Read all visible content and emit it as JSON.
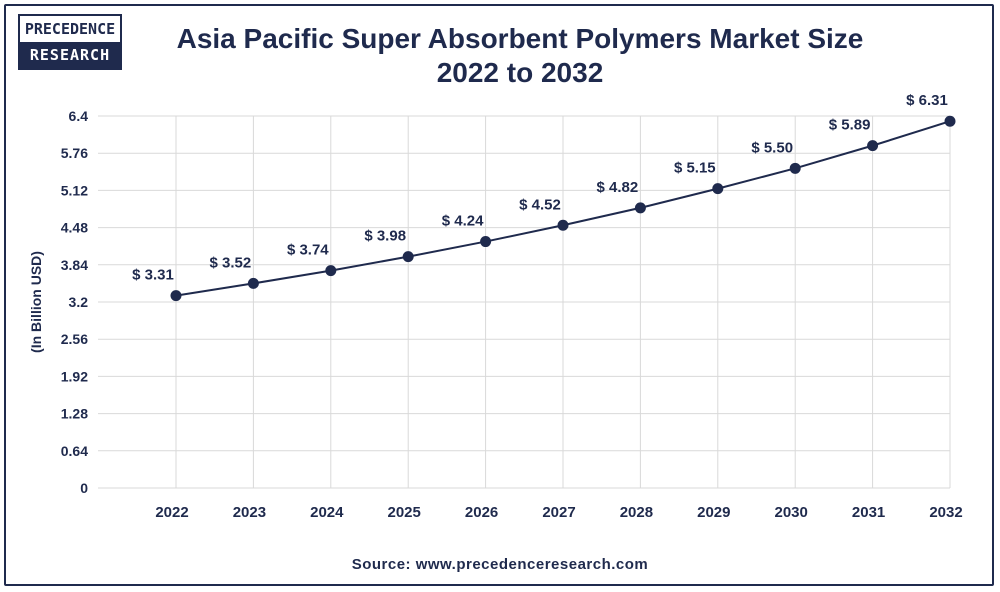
{
  "logo": {
    "line1": "PRECEDENCE",
    "line2": "RESEARCH"
  },
  "title": {
    "line1": "Asia Pacific Super Absorbent Polymers Market Size",
    "line2": "2022 to 2032"
  },
  "source": "Source: www.precedenceresearch.com",
  "colors": {
    "primary": "#1f2a4d",
    "grid": "#d9d9d9"
  },
  "chart_data": {
    "type": "line",
    "title": "Asia Pacific Super Absorbent Polymers Market Size 2022 to 2032",
    "xlabel": "",
    "ylabel": "(In Billion USD)",
    "ylim": [
      0,
      6.4
    ],
    "yticks": [
      "0",
      "0.64",
      "1.28",
      "1.92",
      "2.56",
      "3.2",
      "3.84",
      "4.48",
      "5.12",
      "5.76",
      "6.4"
    ],
    "categories": [
      "2022",
      "2023",
      "2024",
      "2025",
      "2026",
      "2027",
      "2028",
      "2029",
      "2030",
      "2031",
      "2032"
    ],
    "series": [
      {
        "values": [
          3.31,
          3.52,
          3.74,
          3.98,
          4.24,
          4.52,
          4.82,
          5.15,
          5.5,
          5.89,
          6.31
        ],
        "labels": [
          "$ 3.31",
          "$ 3.52",
          "$ 3.74",
          "$ 3.98",
          "$ 4.24",
          "$ 4.52",
          "$ 4.82",
          "$ 5.15",
          "$ 5.50",
          "$ 5.89",
          "$ 6.31"
        ]
      }
    ],
    "grid": true,
    "legend": "none"
  }
}
